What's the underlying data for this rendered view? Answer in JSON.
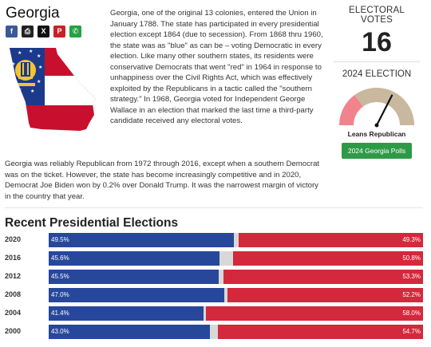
{
  "state": {
    "name": "Georgia",
    "share_icons": [
      {
        "name": "facebook-icon",
        "glyph": "f",
        "color": "#3b5998"
      },
      {
        "name": "print-icon",
        "glyph": "⎙",
        "color": "#222222"
      },
      {
        "name": "x-icon",
        "glyph": "𝕏",
        "color": "#111111"
      },
      {
        "name": "pinterest-icon",
        "glyph": "P",
        "color": "#cb2027"
      },
      {
        "name": "whatsapp-icon",
        "glyph": "✆",
        "color": "#25a244"
      }
    ]
  },
  "intro_text": "Georgia, one of the original 13 colonies, entered the Union in January 1788. The state has participated in every presidential election except 1864 (due to secession). From 1868 thru 1960, the state was as \"blue\" as can be – voting Democratic in every election. Like many other southern states, its residents were conservative Democrats that went \"red\" in 1964 in response to unhappiness over the Civil Rights Act, which was effectively exploited by the Republicans in a tactic called the \"southern strategy.\" In 1968, Georgia voted for Independent George Wallace in an election that marked the last time a third-party candidate received any electoral votes.",
  "second_paragraph": "Georgia was reliably Republican from 1972 through 2016, except when a southern Democrat was on the ticket. However, the state has become increasingly competitive and in 2020, Democrat Joe Biden won by 0.2% over Donald Trump. It was the narrowest margin of victory in the country that year.",
  "sidebar": {
    "electoral_votes_label": "ELECTORAL VOTES",
    "electoral_votes": "16",
    "election_label": "2024 ELECTION",
    "lean_label": "Leans Republican",
    "polls_button": "2024 Georgia Polls",
    "gauge": {
      "lean_fraction": 0.65,
      "dem_color": "#f1838c",
      "rep_color": "#c8b89e"
    }
  },
  "section_title": "Recent Presidential Elections",
  "colors": {
    "dem": "#27479b",
    "rep": "#d4283c",
    "other": "#d8d8d8"
  },
  "elections": [
    {
      "year": "2020",
      "dem": 49.5,
      "rep": 49.3,
      "dem_label": "49.5%",
      "rep_label": "49.3%"
    },
    {
      "year": "2016",
      "dem": 45.6,
      "rep": 50.8,
      "dem_label": "45.6%",
      "rep_label": "50.8%"
    },
    {
      "year": "2012",
      "dem": 45.5,
      "rep": 53.3,
      "dem_label": "45.5%",
      "rep_label": "53.3%"
    },
    {
      "year": "2008",
      "dem": 47.0,
      "rep": 52.2,
      "dem_label": "47.0%",
      "rep_label": "52.2%"
    },
    {
      "year": "2004",
      "dem": 41.4,
      "rep": 58.0,
      "dem_label": "41.4%",
      "rep_label": "58.0%"
    },
    {
      "year": "2000",
      "dem": 43.0,
      "rep": 54.7,
      "dem_label": "43.0%",
      "rep_label": "54.7%"
    }
  ]
}
